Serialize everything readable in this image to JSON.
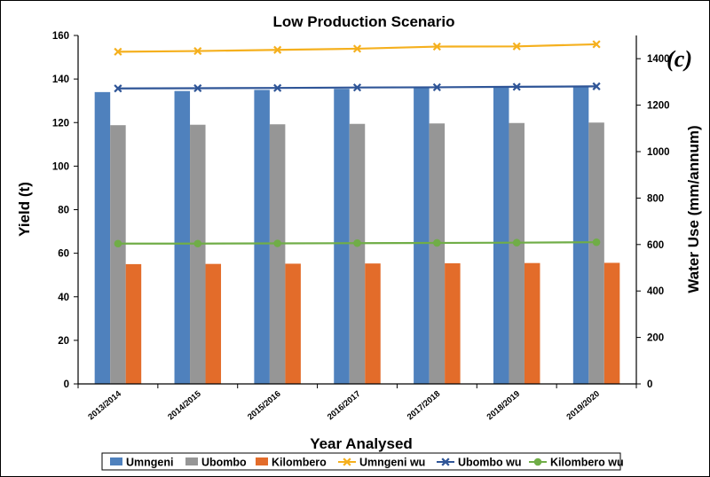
{
  "chart_data": {
    "type": "bar",
    "title": "Low Production Scenario",
    "panel_label": "(c)",
    "xlabel": "Year Analysed",
    "ylabel": "Yield (t)",
    "y2label": "Water Use (mm/annum)",
    "ylim": [
      0,
      160
    ],
    "y2lim": [
      0,
      1500
    ],
    "yticks": [
      "0",
      "20",
      "40",
      "60",
      "80",
      "100",
      "120",
      "140",
      "160"
    ],
    "y2ticks": [
      "0",
      "200",
      "400",
      "600",
      "800",
      "1000",
      "1200",
      "1400"
    ],
    "categories": [
      "2013/2014",
      "2014/2015",
      "2015/2016",
      "2016/2017",
      "2017/2018",
      "2018/2019",
      "2019/2020"
    ],
    "series": [
      {
        "name": "Umngeni",
        "kind": "bar",
        "axis": "left",
        "color": "#4F81BD",
        "values": [
          134.0,
          134.5,
          135.0,
          135.5,
          136.0,
          136.5,
          137.0
        ]
      },
      {
        "name": "Ubombo",
        "kind": "bar",
        "axis": "left",
        "color": "#969696",
        "values": [
          118.8,
          119.0,
          119.2,
          119.4,
          119.6,
          119.8,
          120.0
        ]
      },
      {
        "name": "Kilombero",
        "kind": "bar",
        "axis": "left",
        "color": "#E36C2A",
        "values": [
          55.0,
          55.1,
          55.2,
          55.3,
          55.4,
          55.5,
          55.6
        ]
      },
      {
        "name": "Umngeni wu",
        "kind": "line",
        "axis": "right",
        "marker": "x",
        "color": "#F5B01E",
        "values": [
          1430,
          1433,
          1438,
          1443,
          1452,
          1453,
          1462
        ]
      },
      {
        "name": "Ubombo wu",
        "kind": "line",
        "axis": "right",
        "marker": "x",
        "color": "#2F5597",
        "values": [
          1272,
          1273,
          1274,
          1276,
          1277,
          1279,
          1281
        ]
      },
      {
        "name": "Kilombero wu",
        "kind": "line",
        "axis": "right",
        "marker": "circle",
        "color": "#70AD47",
        "values": [
          604,
          604,
          605,
          606,
          607,
          608,
          610
        ]
      }
    ],
    "grid": false,
    "legend_position": "bottom"
  }
}
